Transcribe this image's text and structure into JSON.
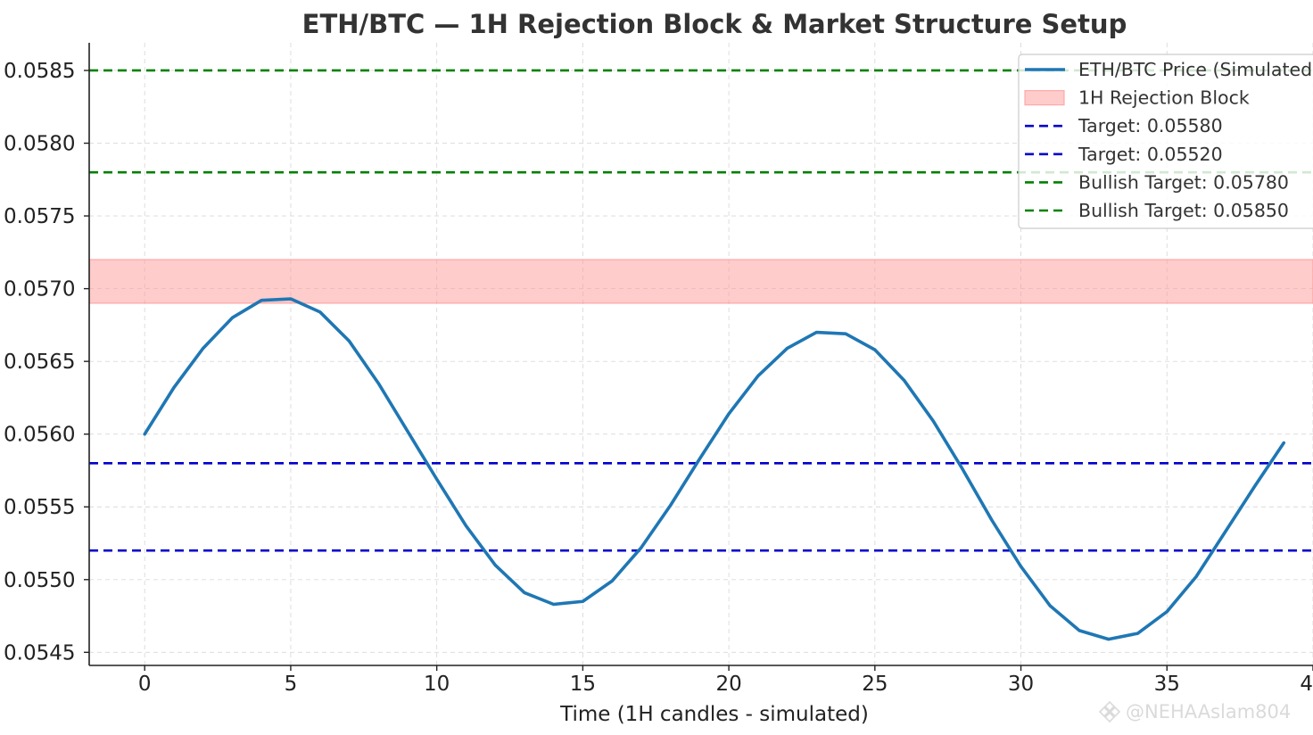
{
  "chart_data": {
    "type": "line",
    "title": "ETH/BTC — 1H Rejection Block & Market Structure Setup",
    "xlabel": "Time (1H candles - simulated)",
    "ylabel": "",
    "xlim": [
      -1.9,
      40.0
    ],
    "ylim": [
      0.05441,
      0.05869
    ],
    "x_ticks": [
      {
        "value": 0,
        "label": "0"
      },
      {
        "value": 5,
        "label": "5"
      },
      {
        "value": 10,
        "label": "10"
      },
      {
        "value": 15,
        "label": "15"
      },
      {
        "value": 20,
        "label": "20"
      },
      {
        "value": 25,
        "label": "25"
      },
      {
        "value": 30,
        "label": "30"
      },
      {
        "value": 35,
        "label": "35"
      },
      {
        "value": 40,
        "label": "40"
      }
    ],
    "y_ticks": [
      {
        "value": 0.0545,
        "label": "0.0545"
      },
      {
        "value": 0.055,
        "label": "0.0550"
      },
      {
        "value": 0.0555,
        "label": "0.0555"
      },
      {
        "value": 0.056,
        "label": "0.0560"
      },
      {
        "value": 0.0565,
        "label": "0.0565"
      },
      {
        "value": 0.057,
        "label": "0.0570"
      },
      {
        "value": 0.0575,
        "label": "0.0575"
      },
      {
        "value": 0.058,
        "label": "0.0580"
      },
      {
        "value": 0.0585,
        "label": "0.0585"
      }
    ],
    "grid": true,
    "legend_position": "top-right",
    "series": [
      {
        "name": "ETH/BTC Price (Simulated)",
        "color": "#1f77b4",
        "x": [
          0,
          1,
          2,
          3,
          4,
          5,
          6,
          7,
          8,
          9,
          10,
          11,
          12,
          13,
          14,
          15,
          16,
          17,
          18,
          19,
          20,
          21,
          22,
          23,
          24,
          25,
          26,
          27,
          28,
          29,
          30,
          31,
          32,
          33,
          34,
          35,
          36,
          37,
          38,
          39
        ],
        "values": [
          0.056,
          0.05632,
          0.05659,
          0.0568,
          0.05692,
          0.05693,
          0.05684,
          0.05664,
          0.05635,
          0.05602,
          0.05569,
          0.05537,
          0.0551,
          0.05491,
          0.05483,
          0.05485,
          0.05499,
          0.05522,
          0.05551,
          0.05583,
          0.05614,
          0.0564,
          0.05659,
          0.0567,
          0.05669,
          0.05658,
          0.05637,
          0.05609,
          0.05576,
          0.05541,
          0.05509,
          0.05482,
          0.05465,
          0.05459,
          0.05463,
          0.05478,
          0.05502,
          0.05533,
          0.05564,
          0.05594
        ]
      }
    ],
    "bands": [
      {
        "name": "1H Rejection Block",
        "y0": 0.0569,
        "y1": 0.0572,
        "color": "#ff9999"
      }
    ],
    "hlines": [
      {
        "name": "Target: 0.05580",
        "value": 0.0558,
        "color": "#0000cc"
      },
      {
        "name": "Target: 0.05520",
        "value": 0.0552,
        "color": "#0000cc"
      },
      {
        "name": "Bullish Target: 0.05780",
        "value": 0.0578,
        "color": "#008000"
      },
      {
        "name": "Bullish Target: 0.05850",
        "value": 0.0585,
        "color": "#008000"
      }
    ],
    "legend": [
      {
        "label": "ETH/BTC Price (Simulated)",
        "kind": "line",
        "color": "#1f77b4"
      },
      {
        "label": "1H Rejection Block",
        "kind": "patch",
        "color": "#ff9999"
      },
      {
        "label": "Target: 0.05580",
        "kind": "dashed",
        "color": "#0000cc"
      },
      {
        "label": "Target: 0.05520",
        "kind": "dashed",
        "color": "#0000cc"
      },
      {
        "label": "Bullish Target: 0.05780",
        "kind": "dashed",
        "color": "#008000"
      },
      {
        "label": "Bullish Target: 0.05850",
        "kind": "dashed",
        "color": "#008000"
      }
    ]
  },
  "watermark": {
    "text": "@NEHAAslam804",
    "icon": "binance-logo-icon"
  }
}
